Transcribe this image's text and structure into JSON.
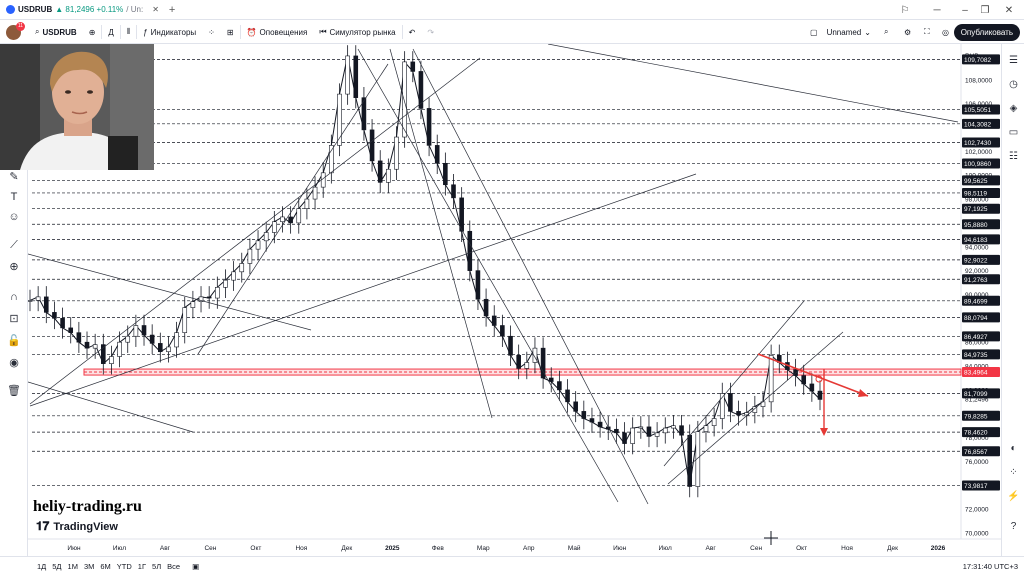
{
  "browser_tab": {
    "title": "USDRUB",
    "change": "▲ 81,2496 +0.11%",
    "extra": "/ Un:",
    "new_tab": "+"
  },
  "toolbar": {
    "avatar_badge": "11",
    "symbol": "USDRUB",
    "interval": "Д",
    "indicators_label": "Индикаторы",
    "alerts_label": "Оповещения",
    "replay_label": "Симулятор рынка",
    "layout_name": "Unnamed",
    "publish_label": "Опубликовать"
  },
  "chart_data": {
    "type": "line",
    "symbol": "USDRUB",
    "currency": "RUB",
    "last_price": "81,2496",
    "ylim": [
      69.5,
      111.0
    ],
    "y_ticks": [
      "70,0000",
      "72,0000",
      "76,0000",
      "78,0000",
      "80,0000",
      "82,0000",
      "84,0000",
      "86,0000",
      "88,0000",
      "90,0000",
      "92,0000",
      "94,0000",
      "96,0000",
      "98,0000",
      "100,0000",
      "102,0000",
      "106,0000",
      "108,0000"
    ],
    "x_ticks": [
      "Июн",
      "Июл",
      "Авг",
      "Сен",
      "Окт",
      "Ноя",
      "Дек",
      "2025",
      "Фев",
      "Мар",
      "Апр",
      "Май",
      "Июн",
      "Июл",
      "Авг",
      "Сен",
      "Окт",
      "Ноя",
      "Дек",
      "2026"
    ],
    "price_levels": [
      "109,7082",
      "105,5051",
      "104,3082",
      "102,7430",
      "100,9860",
      "99,5625",
      "98,5119",
      "97,1925",
      "95,8880",
      "94,6183",
      "92,9022",
      "91,2763",
      "89,4699",
      "88,0794",
      "86,4927",
      "84,9735",
      "83,4964",
      "81,7099",
      "79,8285",
      "78,4620",
      "76,8567",
      "73,9817"
    ],
    "highlight_level": "83,4964",
    "series": [
      {
        "values": [
          89.5,
          89.8,
          88.5,
          88.0,
          87.2,
          86.8,
          86.0,
          85.5,
          85.8,
          84.2,
          84.8,
          86.0,
          86.5,
          87.4,
          86.6,
          85.9,
          85.2,
          85.6,
          86.8,
          88.9,
          89.4,
          89.8,
          89.7,
          90.6,
          91.2,
          91.9,
          92.6,
          93.8,
          94.5,
          95.2,
          96.1,
          96.5,
          96.0,
          97.2,
          98.0,
          99.0,
          100.2,
          102.5,
          106.8,
          110.0,
          106.5,
          103.8,
          101.2,
          99.4,
          100.5,
          103.2,
          109.5,
          108.7,
          105.6,
          102.5,
          101.0,
          99.2,
          98.1,
          95.3,
          92.0,
          89.6,
          88.2,
          87.4,
          86.5,
          84.9,
          83.8,
          84.3,
          85.5,
          83.0,
          82.7,
          82.0,
          81.0,
          80.2,
          79.6,
          79.3,
          78.9,
          78.7,
          78.4,
          77.5,
          78.8,
          78.9,
          78.1,
          78.4,
          78.8,
          79.0,
          78.2,
          73.9,
          78.5,
          79.0,
          79.6,
          81.7,
          80.2,
          79.9,
          80.1,
          80.6,
          81.0,
          84.9,
          84.3,
          83.7,
          83.2,
          82.5,
          81.9,
          81.2
        ]
      }
    ],
    "xlabel": "",
    "ylabel": ""
  },
  "watermark": {
    "site": "heliy-trading.ru",
    "brand": "TradingView"
  },
  "bottom": {
    "ranges": [
      "1Д",
      "5Д",
      "1М",
      "3М",
      "6М",
      "YTD",
      "1Г",
      "5Л",
      "Все"
    ],
    "clock": "17:31:40 UTC+3"
  },
  "colors": {
    "up": "#089981",
    "highlight": "#f23645",
    "arrow": "#e53935",
    "publish_bg": "#131722"
  }
}
